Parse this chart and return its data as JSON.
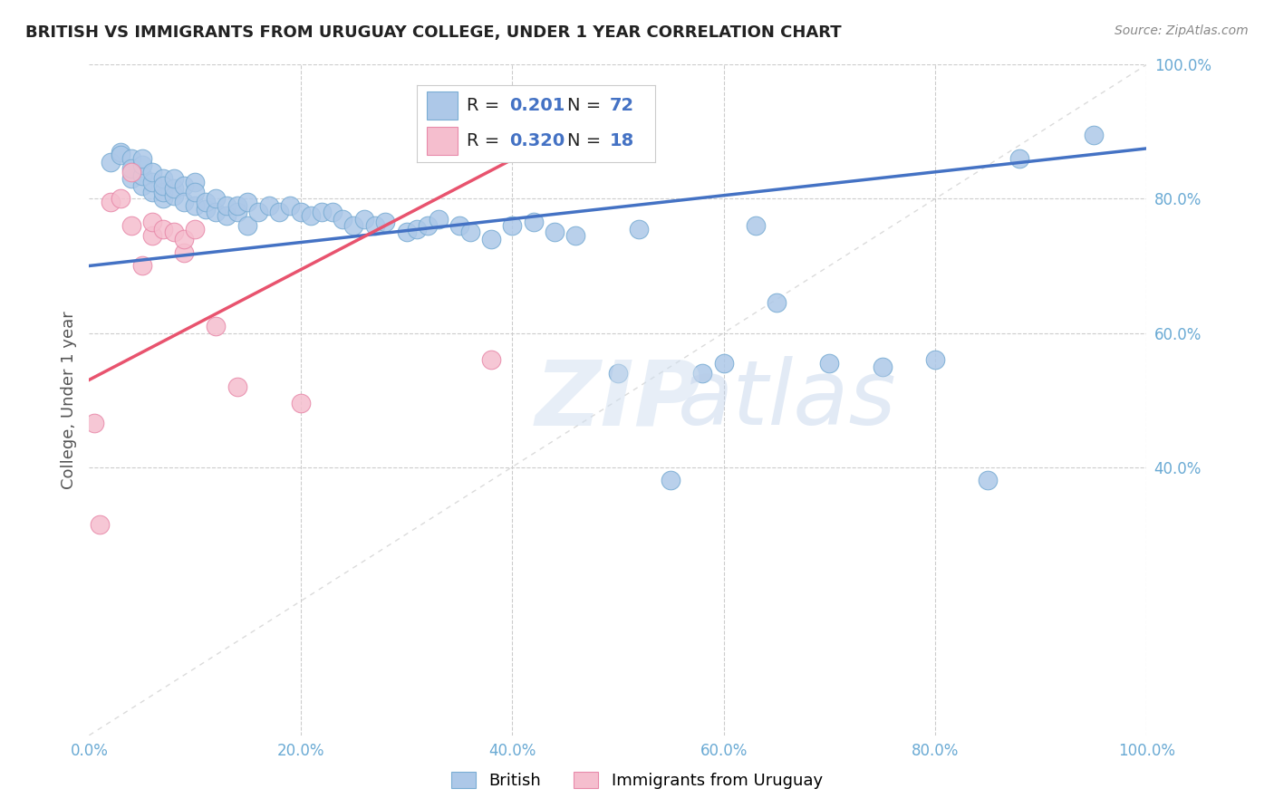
{
  "title": "BRITISH VS IMMIGRANTS FROM URUGUAY COLLEGE, UNDER 1 YEAR CORRELATION CHART",
  "source": "Source: ZipAtlas.com",
  "ylabel": "College, Under 1 year",
  "legend_label_british": "British",
  "legend_label_uruguay": "Immigrants from Uruguay",
  "british_color": "#adc8e8",
  "british_edge_color": "#7aadd4",
  "uruguay_color": "#f5bece",
  "uruguay_edge_color": "#e88aaa",
  "british_line_color": "#4472c4",
  "uruguay_line_color": "#e8536e",
  "diagonal_color": "#cccccc",
  "grid_color": "#cccccc",
  "tick_color": "#6aaad4",
  "R_british": 0.201,
  "N_british": 72,
  "R_uruguay": 0.32,
  "N_uruguay": 18,
  "british_x": [
    0.02,
    0.03,
    0.03,
    0.04,
    0.04,
    0.04,
    0.05,
    0.05,
    0.05,
    0.05,
    0.06,
    0.06,
    0.06,
    0.07,
    0.07,
    0.07,
    0.07,
    0.08,
    0.08,
    0.08,
    0.09,
    0.09,
    0.1,
    0.1,
    0.1,
    0.11,
    0.11,
    0.12,
    0.12,
    0.13,
    0.13,
    0.14,
    0.14,
    0.15,
    0.15,
    0.16,
    0.17,
    0.18,
    0.19,
    0.2,
    0.21,
    0.22,
    0.23,
    0.24,
    0.25,
    0.26,
    0.27,
    0.28,
    0.3,
    0.31,
    0.32,
    0.33,
    0.35,
    0.36,
    0.38,
    0.4,
    0.42,
    0.44,
    0.46,
    0.5,
    0.52,
    0.55,
    0.58,
    0.6,
    0.63,
    0.65,
    0.7,
    0.75,
    0.8,
    0.85,
    0.88,
    0.95
  ],
  "british_y": [
    0.855,
    0.87,
    0.865,
    0.83,
    0.86,
    0.845,
    0.82,
    0.835,
    0.85,
    0.86,
    0.81,
    0.825,
    0.84,
    0.8,
    0.81,
    0.83,
    0.82,
    0.805,
    0.815,
    0.83,
    0.82,
    0.795,
    0.825,
    0.79,
    0.81,
    0.785,
    0.795,
    0.78,
    0.8,
    0.775,
    0.79,
    0.78,
    0.79,
    0.76,
    0.795,
    0.78,
    0.79,
    0.78,
    0.79,
    0.78,
    0.775,
    0.78,
    0.78,
    0.77,
    0.76,
    0.77,
    0.76,
    0.765,
    0.75,
    0.755,
    0.76,
    0.77,
    0.76,
    0.75,
    0.74,
    0.76,
    0.765,
    0.75,
    0.745,
    0.54,
    0.755,
    0.38,
    0.54,
    0.555,
    0.76,
    0.645,
    0.555,
    0.55,
    0.56,
    0.38,
    0.86,
    0.895
  ],
  "uruguay_x": [
    0.005,
    0.01,
    0.02,
    0.03,
    0.04,
    0.04,
    0.05,
    0.06,
    0.06,
    0.07,
    0.08,
    0.09,
    0.09,
    0.1,
    0.12,
    0.14,
    0.2,
    0.38
  ],
  "uruguay_y": [
    0.465,
    0.315,
    0.795,
    0.8,
    0.76,
    0.84,
    0.7,
    0.745,
    0.765,
    0.755,
    0.75,
    0.72,
    0.74,
    0.755,
    0.61,
    0.52,
    0.495,
    0.56
  ],
  "british_line_x": [
    0.0,
    1.0
  ],
  "british_line_y": [
    0.7,
    0.875
  ],
  "uruguay_line_x": [
    0.0,
    0.42
  ],
  "uruguay_line_y": [
    0.53,
    0.875
  ],
  "xlim": [
    0.0,
    1.0
  ],
  "ylim": [
    0.0,
    1.0
  ],
  "xticks": [
    0.0,
    0.2,
    0.4,
    0.6,
    0.8,
    1.0
  ],
  "yticks": [
    0.4,
    0.6,
    0.8,
    1.0
  ],
  "background_color": "#ffffff",
  "title_color": "#222222",
  "source_color": "#888888",
  "watermark": "ZIPatlas",
  "watermark_color": "#d0dff0"
}
